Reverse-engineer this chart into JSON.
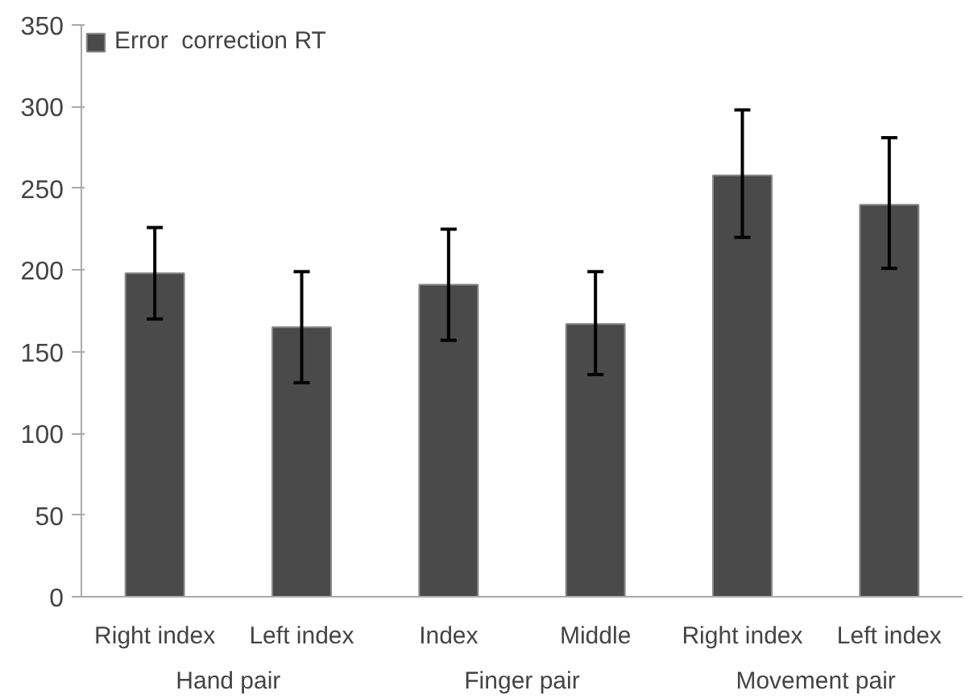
{
  "chart_data": {
    "type": "bar",
    "categories": [
      "Right index",
      "Left index",
      "Index",
      "Middle",
      "Right index",
      "Left index"
    ],
    "series": [
      {
        "name": "Error  correction RT",
        "color": "#4a4a4a",
        "values": [
          198,
          165,
          191,
          167,
          258,
          240
        ],
        "errors": [
          [
            170,
            226
          ],
          [
            131,
            199
          ],
          [
            157,
            225
          ],
          [
            136,
            199
          ],
          [
            220,
            298
          ],
          [
            201,
            281
          ]
        ]
      }
    ],
    "annotations": [
      "Hand pair",
      "Finger pair",
      "Movement pair"
    ],
    "ylim": [
      0,
      350
    ],
    "yticks": [
      0,
      50,
      100,
      150,
      200,
      250,
      300,
      350
    ],
    "grid": false,
    "legend": "top left"
  }
}
